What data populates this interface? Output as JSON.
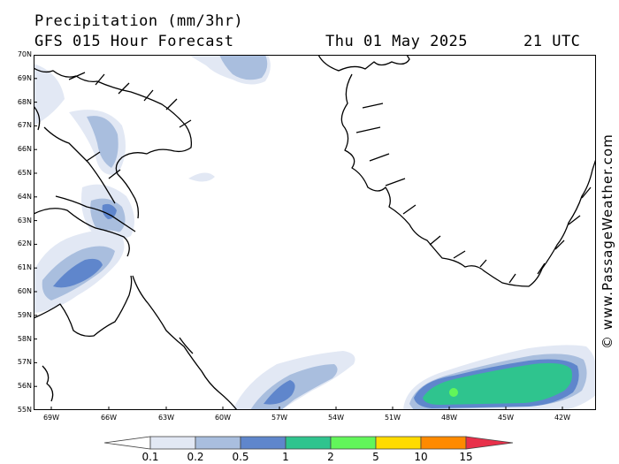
{
  "header": {
    "title": "Precipitation (mm/3hr)",
    "forecast": "GFS 015 Hour Forecast",
    "date": "Thu 01 May 2025",
    "time": "21 UTC"
  },
  "credit": "© www.PassageWeather.com",
  "axes": {
    "lat_labels": [
      "70N",
      "69N",
      "68N",
      "67N",
      "66N",
      "65N",
      "64N",
      "63N",
      "62N",
      "61N",
      "60N",
      "59N",
      "58N",
      "57N",
      "56N",
      "55N"
    ],
    "lon_labels": [
      "69W",
      "66W",
      "63W",
      "60W",
      "57W",
      "54W",
      "51W",
      "48W",
      "45W",
      "42W"
    ]
  },
  "legend": {
    "unit": "mm/3hr",
    "breaks": [
      "0.1",
      "0.2",
      "0.5",
      "1",
      "2",
      "5",
      "10",
      "15"
    ],
    "colors": [
      "#ffffff",
      "#e2e8f4",
      "#a9bede",
      "#5f86cc",
      "#2fc48e",
      "#62f65a",
      "#ffdb00",
      "#ff8a00",
      "#e8304a"
    ]
  },
  "map": {
    "region": "Davis Strait / Baffin Island / Southern Greenland",
    "lat_range": [
      55,
      70
    ],
    "lon_range": [
      -70,
      -41
    ],
    "precip_areas": [
      {
        "name": "precip-north-davis-strait",
        "max_level": "0.5"
      },
      {
        "name": "precip-baffin-coast",
        "max_level": "1"
      },
      {
        "name": "precip-labrador-sea",
        "max_level": "1"
      },
      {
        "name": "precip-south-cape-farewell",
        "max_level": "5"
      }
    ]
  }
}
